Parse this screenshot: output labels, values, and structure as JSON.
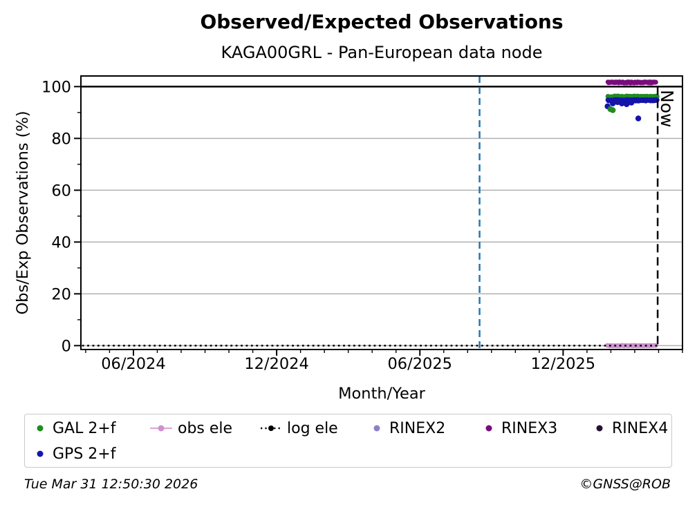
{
  "figure": {
    "title": "Observed/Expected Observations",
    "subtitle": "KAGA00GRL - Pan-European data node",
    "footer_timestamp": "Tue Mar 31 12:50:30 2026",
    "footer_copyright": "©GNSS@ROB"
  },
  "colors": {
    "gal": "#228b22",
    "gps": "#1515aa",
    "rinex2": "#8a82c8",
    "rinex3": "#780c7c",
    "rinex4": "#261030",
    "obs_ele": "#cf90d0",
    "log_ele": "#000000",
    "event_line": "#1f77b4",
    "now_line": "#000000",
    "grid": "#b0b0b0",
    "axis": "#000000"
  },
  "legend": {
    "items": [
      {
        "label": "GAL 2+f",
        "marker": "dot",
        "color_key": "gal",
        "row": 0,
        "col": 0
      },
      {
        "label": "obs ele",
        "marker": "line-dot",
        "color_key": "obs_ele",
        "row": 0,
        "col": 1
      },
      {
        "label": "log ele",
        "marker": "dotted-line-dot",
        "color_key": "log_ele",
        "row": 0,
        "col": 2
      },
      {
        "label": "RINEX2",
        "marker": "dot",
        "color_key": "rinex2",
        "row": 0,
        "col": 3
      },
      {
        "label": "RINEX3",
        "marker": "dot",
        "color_key": "rinex3",
        "row": 0,
        "col": 4
      },
      {
        "label": "RINEX4",
        "marker": "dot",
        "color_key": "rinex4",
        "row": 0,
        "col": 5
      },
      {
        "label": "GPS 2+f",
        "marker": "dot",
        "color_key": "gps",
        "row": 1,
        "col": 0
      }
    ]
  },
  "chart_data": {
    "type": "scatter",
    "title": "Observed/Expected Observations",
    "subtitle": "KAGA00GRL - Pan-European data node",
    "xlabel": "Month/Year",
    "ylabel": "Obs/Exp Observations (%)",
    "x_unit": "months since plot left edge (~2024-03-25); ticks are month/year dates",
    "xlim": [
      0,
      25.2
    ],
    "ylim": [
      -1.5,
      104.1
    ],
    "x_major_ticks": [
      {
        "m": 2.2,
        "label": "06/2024"
      },
      {
        "m": 8.2,
        "label": "12/2024"
      },
      {
        "m": 14.2,
        "label": "06/2025"
      },
      {
        "m": 20.2,
        "label": "12/2025"
      }
    ],
    "x_minor_tick_start": 0.2,
    "x_minor_tick_step": 1,
    "y_major_ticks": [
      0,
      20,
      40,
      60,
      80,
      100
    ],
    "y_minor_ticks": [
      10,
      30,
      50,
      70,
      90
    ],
    "y_gridlines": [
      0,
      20,
      40,
      60,
      80
    ],
    "y_solid_line": 100,
    "grid_on": true,
    "legend_position": "bottom",
    "now_label": "Now",
    "reference_lines": [
      {
        "name": "event",
        "m": 16.7,
        "approx_date": "2025-08-20",
        "color_key": "event_line",
        "dash": [
          10,
          6
        ],
        "width": 2.5
      },
      {
        "name": "now",
        "m": 24.16,
        "approx_date": "2026-03-31",
        "color_key": "now_line",
        "dash": [
          12,
          7
        ],
        "width": 2.5,
        "label": "Now"
      }
    ],
    "series_bands": [
      {
        "name": "obs ele",
        "color_key": "obs_ele",
        "m0": 22.05,
        "m1": 24.08,
        "value": 0.0,
        "jitter": 0.12,
        "n": 64,
        "r": 3.4
      },
      {
        "name": "RINEX3",
        "color_key": "rinex3",
        "m0": 22.08,
        "m1": 24.08,
        "value": 101.6,
        "jitter": 0.22,
        "n": 72,
        "r": 3.5
      },
      {
        "name": "GAL 2+f",
        "color_key": "gal",
        "m0": 22.08,
        "m1": 24.13,
        "value": 96.0,
        "jitter": 0.35,
        "n": 84,
        "r": 3.6
      },
      {
        "name": "GPS 2+f",
        "color_key": "gps",
        "m0": 22.08,
        "m1": 24.13,
        "value": 94.7,
        "jitter": 0.25,
        "n": 84,
        "r": 3.6
      }
    ],
    "dotted_line": {
      "name": "log ele",
      "color_key": "log_ele",
      "m0": 0.05,
      "m1": 24.16,
      "value": 0.0
    },
    "outlier_points": [
      {
        "series": "GPS 2+f",
        "color_key": "gps",
        "m": 22.06,
        "value": 92.4
      },
      {
        "series": "GPS 2+f",
        "color_key": "gps",
        "m": 22.28,
        "value": 93.5
      },
      {
        "series": "GPS 2+f",
        "color_key": "gps",
        "m": 22.48,
        "value": 94.0
      },
      {
        "series": "GPS 2+f",
        "color_key": "gps",
        "m": 22.66,
        "value": 93.5
      },
      {
        "series": "GPS 2+f",
        "color_key": "gps",
        "m": 22.86,
        "value": 93.2
      },
      {
        "series": "GPS 2+f",
        "color_key": "gps",
        "m": 23.06,
        "value": 93.8
      },
      {
        "series": "GPS 2+f",
        "color_key": "gps",
        "m": 23.35,
        "value": 87.7
      },
      {
        "series": "GAL 2+f",
        "color_key": "gal",
        "m": 22.18,
        "value": 91.3
      },
      {
        "series": "GAL 2+f",
        "color_key": "gal",
        "m": 22.28,
        "value": 90.9
      }
    ]
  }
}
